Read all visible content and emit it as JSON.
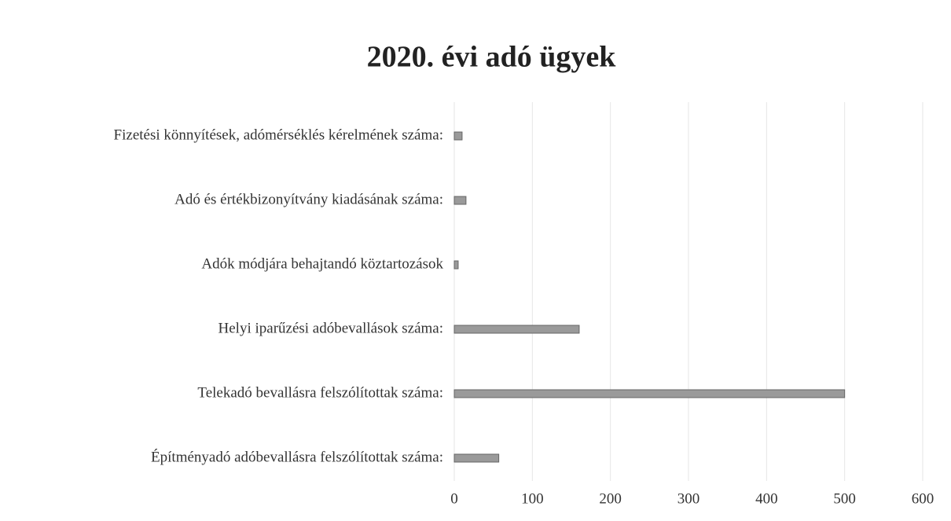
{
  "chart_data": {
    "type": "hbar",
    "title": "2020. évi adó ügyek",
    "categories": [
      "Fizetési könnyítések, adómérséklés kérelmének száma:",
      "Adó és értékbizonyítvány kiadásának száma:",
      "Adók módjára behajtandó köztartozások",
      "Helyi iparűzési adóbevallások száma:",
      "Telekadó bevallásra felszólítottak száma:",
      "Építményadó adóbevallásra felszólítottak száma:"
    ],
    "values": [
      10,
      15,
      5,
      160,
      500,
      57
    ],
    "color": "#9a9a9a",
    "xlim": [
      0,
      600
    ],
    "xticks": [
      0,
      100,
      200,
      300,
      400,
      500,
      600
    ],
    "grid": true
  }
}
